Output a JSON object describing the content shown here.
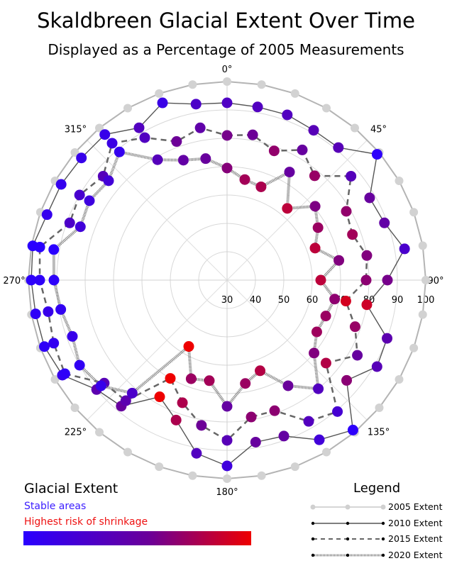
{
  "title": "Skaldbreen Glacial Extent Over Time",
  "subtitle": "Displayed as a Percentage of 2005 Measurements",
  "colorbar": {
    "title": "Glacial Extent",
    "low_label": "Stable areas",
    "high_label": "Highest risk of shrinkage",
    "low_color": "#2a00ff",
    "mid_color": "#6a0099",
    "high_color": "#ee0000"
  },
  "legend_title": "Legend",
  "chart_data": {
    "type": "polar-line",
    "angle_unit": "degrees",
    "angle_tick_labels": [
      "0°",
      "45°",
      "90°",
      "135°",
      "180°",
      "225°",
      "270°",
      "315°"
    ],
    "radial_tick_labels": [
      "30",
      "40",
      "50",
      "60",
      "70",
      "80",
      "90",
      "100"
    ],
    "rlim": [
      30,
      100
    ],
    "grid": true,
    "angles": [
      0,
      10,
      20,
      30,
      40,
      50,
      60,
      70,
      80,
      90,
      100,
      110,
      120,
      130,
      140,
      150,
      160,
      170,
      180,
      190,
      200,
      210,
      220,
      230,
      240,
      250,
      260,
      270,
      280,
      290,
      300,
      310,
      320,
      330,
      340,
      350
    ],
    "series": [
      {
        "name": "2005 Extent",
        "style": "solid-light",
        "color": "#c8c8c8",
        "values": [
          100,
          100,
          100,
          100,
          100,
          100,
          100,
          100,
          100,
          100,
          100,
          100,
          100,
          100,
          100,
          100,
          100,
          100,
          100,
          100,
          100,
          100,
          100,
          100,
          100,
          100,
          100,
          100,
          100,
          100,
          100,
          100,
          100,
          100,
          100,
          100
        ]
      },
      {
        "name": "2010 Extent",
        "style": "solid",
        "color": "#555555",
        "values": [
          92.5,
          92,
          92,
          91,
          91,
          99,
          88,
          89,
          93.5,
          86.5,
          80,
          90,
          91,
          85,
          99,
          95,
          88.5,
          88,
          95.5,
          92,
          82.5,
          77.5,
          88,
          90,
          97,
          98.5,
          98.5,
          99,
          99.5,
          97.5,
          97.5,
          97,
          97,
          92,
          96.5,
          93
        ]
      },
      {
        "name": "2015 Extent",
        "style": "dashed",
        "color": "#666666",
        "values": [
          81,
          82,
          78.5,
          83,
          78,
          87,
          78.5,
          77,
          80,
          79,
          72.5,
          78,
          83,
          75.5,
          90.5,
          87.5,
          79,
          79,
          86.5,
          82,
          76,
          70,
          85.5,
          86.5,
          96,
          95,
          94,
          96,
          97,
          89,
          90,
          87,
          93,
          88,
          82,
          84.5
        ]
      },
      {
        "name": "2020 Extent",
        "style": "dotted",
        "color": "#777777",
        "values": [
          69.5,
          66,
          65,
          74,
          63,
          70.5,
          67,
          63,
          70,
          63,
          68.5,
          67,
          66.5,
          70,
          80,
          73,
          64,
          67,
          74.5,
          66,
          67,
          57,
          82,
          88,
          90,
          88,
          89.5,
          91,
          92,
          85,
          86,
          84.5,
          89,
          79,
          75,
          73.5
        ]
      }
    ]
  }
}
